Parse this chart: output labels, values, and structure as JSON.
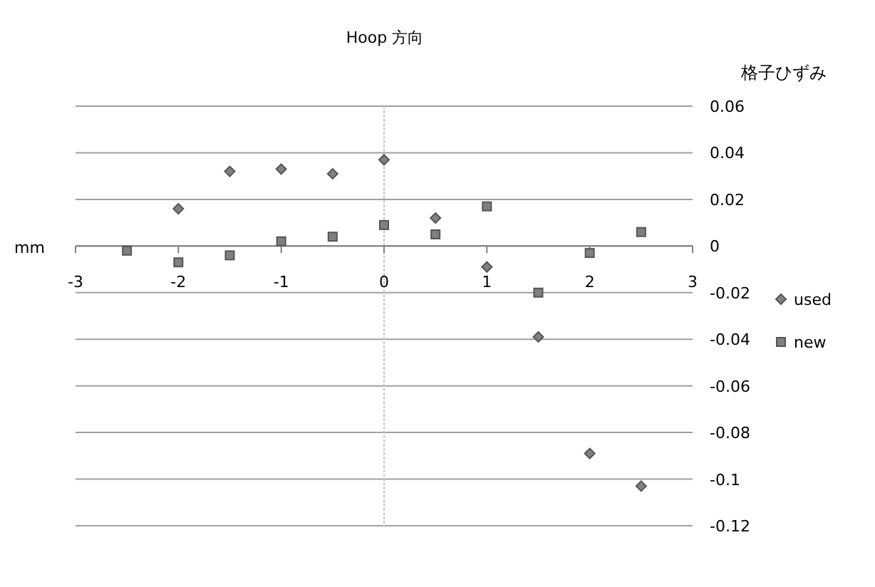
{
  "chart_data": {
    "type": "scatter",
    "title": "Hoop 方向",
    "xlabel": "mm",
    "ylabel": "格子ひずみ",
    "xlim": [
      -3,
      3
    ],
    "xticks": [
      -3,
      -2,
      -1,
      0,
      1,
      2,
      3
    ],
    "ylim": [
      -0.12,
      0.06
    ],
    "yticks": [
      -0.12,
      -0.1,
      -0.08,
      -0.06,
      -0.04,
      -0.02,
      0,
      0.02,
      0.04,
      0.06
    ],
    "grid": "y",
    "legend": "right",
    "ref_lines": [
      {
        "axis": "x",
        "value": 0,
        "color": "#c8c8c8",
        "line_style": "dotted"
      }
    ],
    "series": [
      {
        "name": "used",
        "color": "#808080",
        "marker": "diamond",
        "x": [
          -2,
          -1.5,
          -1,
          -0.5,
          0,
          0.5,
          1,
          1.5,
          2,
          2.5
        ],
        "values": [
          0.016,
          0.032,
          0.033,
          0.031,
          0.037,
          0.012,
          -0.009,
          -0.039,
          -0.089,
          -0.103
        ]
      },
      {
        "name": "new",
        "color": "#808080",
        "marker": "square",
        "x": [
          -2.5,
          -2,
          -1.5,
          -1,
          -0.5,
          0,
          0.5,
          1,
          1.5,
          2,
          2.5
        ],
        "values": [
          -0.002,
          -0.007,
          -0.004,
          0.002,
          0.004,
          0.009,
          0.005,
          0.017,
          -0.02,
          -0.003,
          0.006
        ]
      }
    ]
  }
}
